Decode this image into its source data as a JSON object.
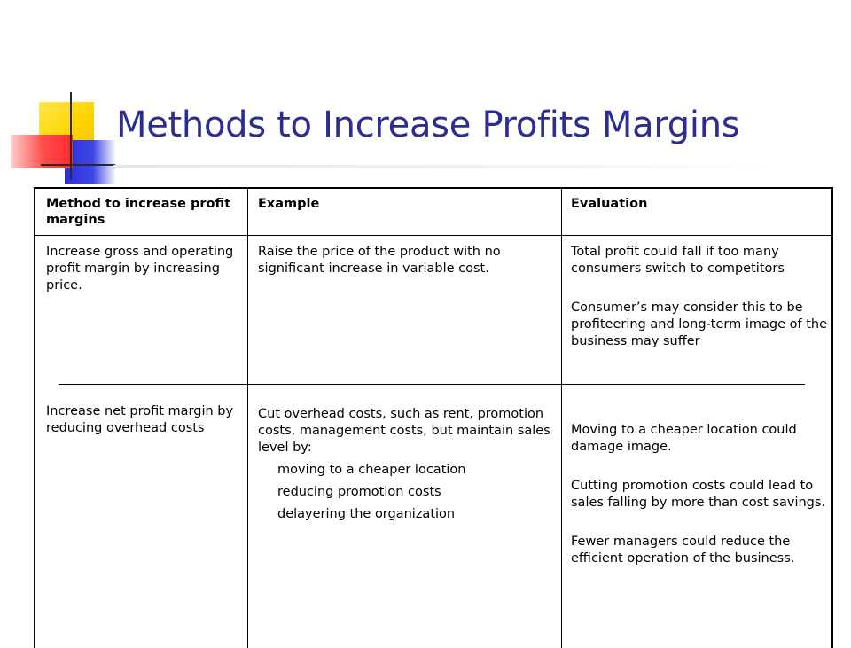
{
  "slide": {
    "title": "Methods to Increase Profits Margins"
  },
  "table": {
    "headers": [
      "Method to increase profit margins",
      "Example",
      "Evaluation"
    ],
    "rows": [
      {
        "method": "Increase gross and operating profit margin by increasing price.",
        "example": "Raise the price of the product with no significant increase in variable cost.",
        "evaluation": [
          "Total profit could fall if too many consumers switch to competitors",
          "Consumer’s may consider this to be profiteering and long-term image of the business may suffer"
        ]
      },
      {
        "method": "Increase net profit margin by reducing overhead costs",
        "example": "Cut overhead costs, such as rent, promotion costs, management costs, but maintain sales level by:",
        "example_items": [
          "moving to a cheaper location",
          "reducing promotion costs",
          "delayering the organization"
        ],
        "evaluation": [
          "Moving to a cheaper location could damage image.",
          "Cutting promotion costs could lead to sales falling by more than cost savings.",
          "Fewer managers could reduce the efficient operation of the business."
        ]
      }
    ]
  },
  "colors": {
    "title": "#2b2d92",
    "accent_yellow": "#ffd400",
    "accent_blue": "#2b2fd6",
    "accent_red": "#ff2a2a"
  }
}
